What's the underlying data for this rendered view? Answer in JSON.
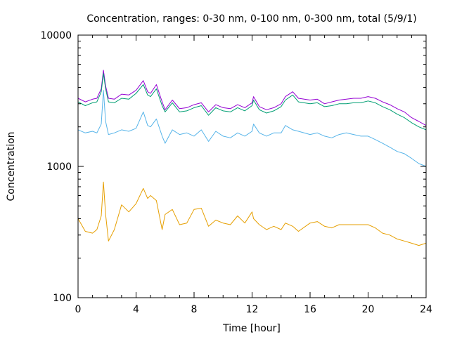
{
  "chart_data": {
    "type": "line",
    "title": "Concentration, ranges: 0-30 nm, 0-100 nm, 0-300 nm, total (5/9/1)",
    "xlabel": "Time [hour]",
    "ylabel": "Concentration",
    "xlim": [
      0,
      24
    ],
    "ylim": [
      100,
      10000
    ],
    "y_scale": "log",
    "grid": false,
    "legend": "none",
    "x_ticks": [
      0,
      4,
      8,
      12,
      16,
      20,
      24
    ],
    "x_tick_labels": [
      "0",
      "4",
      "8",
      "12",
      "16",
      "20",
      "24"
    ],
    "y_ticks": [
      100,
      1000,
      10000
    ],
    "y_tick_labels": [
      "100",
      "1000",
      "10000"
    ],
    "x": [
      0,
      0.5,
      1,
      1.3,
      1.6,
      1.75,
      1.9,
      2.1,
      2.5,
      3,
      3.5,
      4,
      4.5,
      4.8,
      5,
      5.4,
      5.8,
      6,
      6.5,
      7,
      7.5,
      8,
      8.5,
      9,
      9.5,
      10,
      10.5,
      11,
      11.5,
      12,
      12.1,
      12.5,
      13,
      13.5,
      14,
      14.3,
      14.8,
      15.2,
      16,
      16.5,
      17,
      17.5,
      18,
      18.5,
      19,
      19.5,
      20,
      20.5,
      21,
      21.5,
      22,
      22.5,
      23,
      23.5,
      24
    ],
    "series": [
      {
        "color": "#9400d3",
        "values": [
          3300,
          3100,
          3250,
          3300,
          3900,
          5400,
          4100,
          3300,
          3250,
          3550,
          3500,
          3800,
          4500,
          3700,
          3600,
          4200,
          3100,
          2700,
          3200,
          2750,
          2800,
          2950,
          3050,
          2600,
          2950,
          2800,
          2750,
          2950,
          2800,
          3050,
          3400,
          2850,
          2700,
          2800,
          3000,
          3400,
          3700,
          3300,
          3200,
          3250,
          3000,
          3100,
          3200,
          3250,
          3300,
          3300,
          3400,
          3300,
          3100,
          2950,
          2750,
          2600,
          2350,
          2200,
          2050
        ]
      },
      {
        "color": "#009e73",
        "values": [
          3100,
          2900,
          3050,
          3100,
          3700,
          5100,
          3900,
          3100,
          3050,
          3300,
          3250,
          3600,
          4200,
          3500,
          3400,
          3900,
          2900,
          2600,
          3050,
          2600,
          2650,
          2800,
          2900,
          2450,
          2800,
          2650,
          2600,
          2800,
          2650,
          2900,
          3200,
          2700,
          2550,
          2650,
          2850,
          3200,
          3500,
          3100,
          3000,
          3050,
          2850,
          2900,
          3000,
          3000,
          3050,
          3050,
          3150,
          3050,
          2850,
          2700,
          2500,
          2350,
          2150,
          2000,
          1900
        ]
      },
      {
        "color": "#56b4e9",
        "values": [
          1900,
          1800,
          1850,
          1800,
          2100,
          3800,
          2200,
          1750,
          1800,
          1900,
          1850,
          1950,
          2600,
          2050,
          2000,
          2300,
          1700,
          1500,
          1900,
          1750,
          1800,
          1700,
          1900,
          1550,
          1850,
          1700,
          1650,
          1800,
          1700,
          1850,
          2100,
          1800,
          1700,
          1800,
          1800,
          2050,
          1900,
          1850,
          1750,
          1800,
          1700,
          1650,
          1750,
          1800,
          1750,
          1700,
          1700,
          1600,
          1500,
          1400,
          1300,
          1250,
          1150,
          1050,
          1000
        ]
      },
      {
        "color": "#e69f00",
        "values": [
          400,
          320,
          310,
          330,
          420,
          760,
          430,
          270,
          330,
          510,
          450,
          520,
          680,
          570,
          600,
          550,
          330,
          430,
          470,
          360,
          370,
          470,
          480,
          350,
          390,
          370,
          360,
          420,
          370,
          450,
          400,
          360,
          330,
          350,
          330,
          370,
          350,
          320,
          370,
          380,
          350,
          340,
          360,
          360,
          360,
          360,
          360,
          340,
          310,
          300,
          280,
          270,
          260,
          250,
          260
        ]
      }
    ]
  }
}
